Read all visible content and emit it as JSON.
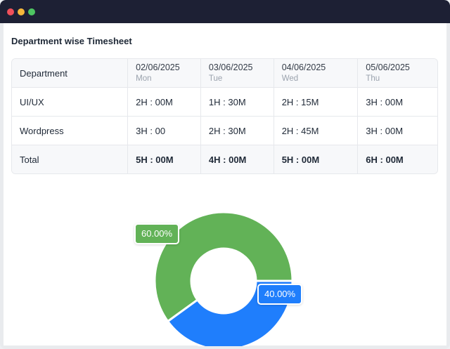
{
  "window": {
    "controls": [
      "close",
      "minimize",
      "maximize"
    ]
  },
  "title": "Department wise Timesheet",
  "table": {
    "first_header": "Department",
    "columns": [
      {
        "date": "02/06/2025",
        "day": "Mon"
      },
      {
        "date": "03/06/2025",
        "day": "Tue"
      },
      {
        "date": "04/06/2025",
        "day": "Wed"
      },
      {
        "date": "05/06/2025",
        "day": "Thu"
      }
    ],
    "rows": [
      {
        "department": "UI/UX",
        "cells": [
          "2H : 00M",
          "1H : 30M",
          "2H : 15M",
          "3H : 00M"
        ]
      },
      {
        "department": "Wordpress",
        "cells": [
          "3H : 00",
          "2H : 30M",
          "2H : 45M",
          "3H : 00M"
        ]
      },
      {
        "department": "Total",
        "cells": [
          "5H : 00M",
          "4H : 00M",
          "5H : 00M",
          "6H : 00M"
        ]
      }
    ]
  },
  "chart_data": {
    "type": "pie",
    "donut": true,
    "values": [
      60,
      40
    ],
    "labels": [
      "60.00%",
      "40.00%"
    ],
    "colors": [
      "#62b257",
      "#1f7efc"
    ]
  }
}
